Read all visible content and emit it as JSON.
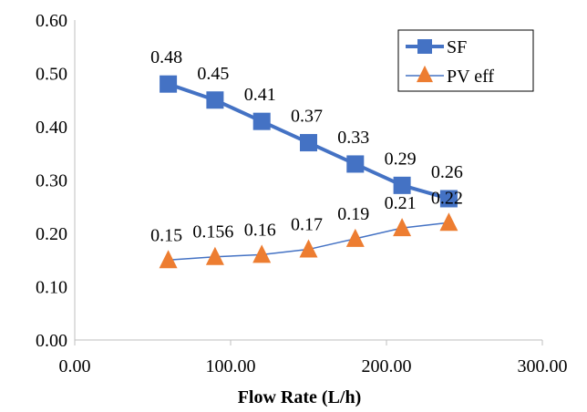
{
  "chart_data": {
    "type": "line",
    "title": "",
    "xlabel": "Flow Rate (L/h)",
    "ylabel": "",
    "xlim": [
      0,
      300
    ],
    "ylim": [
      0,
      0.6
    ],
    "xticks": [
      0,
      100,
      200,
      300
    ],
    "xtick_labels": [
      "0.00",
      "100.00",
      "200.00",
      "300.00"
    ],
    "yticks": [
      0,
      0.1,
      0.2,
      0.3,
      0.4,
      0.5,
      0.6
    ],
    "ytick_labels": [
      "0.00",
      "0.10",
      "0.20",
      "0.30",
      "0.40",
      "0.50",
      "0.60"
    ],
    "grid": false,
    "legend_position": "top-right",
    "series": [
      {
        "name": "SF",
        "marker": "square",
        "color": "#4472C4",
        "x": [
          60,
          90,
          120,
          150,
          180,
          210,
          240
        ],
        "y": [
          0.48,
          0.45,
          0.41,
          0.37,
          0.33,
          0.29,
          0.265
        ],
        "labels": [
          "0.48",
          "0.45",
          "0.41",
          "0.37",
          "0.33",
          "0.29",
          "0.26"
        ]
      },
      {
        "name": "PV eff",
        "marker": "triangle",
        "line_color": "#4472C4",
        "marker_color": "#ED7D31",
        "x": [
          60,
          90,
          120,
          150,
          180,
          210,
          240
        ],
        "y": [
          0.15,
          0.156,
          0.16,
          0.17,
          0.19,
          0.21,
          0.22
        ],
        "labels": [
          "0.15",
          "0.156",
          "0.16",
          "0.17",
          "0.19",
          "0.21",
          "0.22"
        ]
      }
    ]
  }
}
